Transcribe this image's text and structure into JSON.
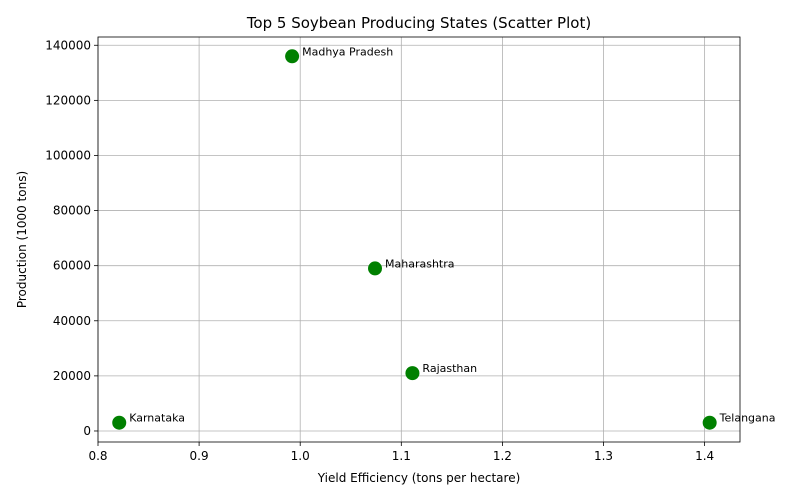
{
  "chart_data": {
    "type": "scatter",
    "title": "Top 5 Soybean Producing States (Scatter Plot)",
    "xlabel": "Yield Efficiency (tons per hectare)",
    "ylabel": "Production (1000 tons)",
    "xlim": [
      0.8,
      1.435
    ],
    "ylim": [
      -4000,
      143000
    ],
    "x_ticks": [
      0.8,
      0.9,
      1.0,
      1.1,
      1.2,
      1.3,
      1.4
    ],
    "x_tick_labels": [
      "0.8",
      "0.9",
      "1.0",
      "1.1",
      "1.2",
      "1.3",
      "1.4"
    ],
    "y_ticks": [
      0,
      20000,
      40000,
      60000,
      80000,
      100000,
      120000,
      140000
    ],
    "y_tick_labels": [
      "0",
      "20000",
      "40000",
      "60000",
      "80000",
      "100000",
      "120000",
      "140000"
    ],
    "grid": true,
    "color": "#008000",
    "points": [
      {
        "label": "Madhya Pradesh",
        "x": 0.992,
        "y": 136000
      },
      {
        "label": "Maharashtra",
        "x": 1.074,
        "y": 59000
      },
      {
        "label": "Rajasthan",
        "x": 1.111,
        "y": 21000
      },
      {
        "label": "Karnataka",
        "x": 0.821,
        "y": 3000
      },
      {
        "label": "Telangana",
        "x": 1.405,
        "y": 3000
      }
    ]
  }
}
